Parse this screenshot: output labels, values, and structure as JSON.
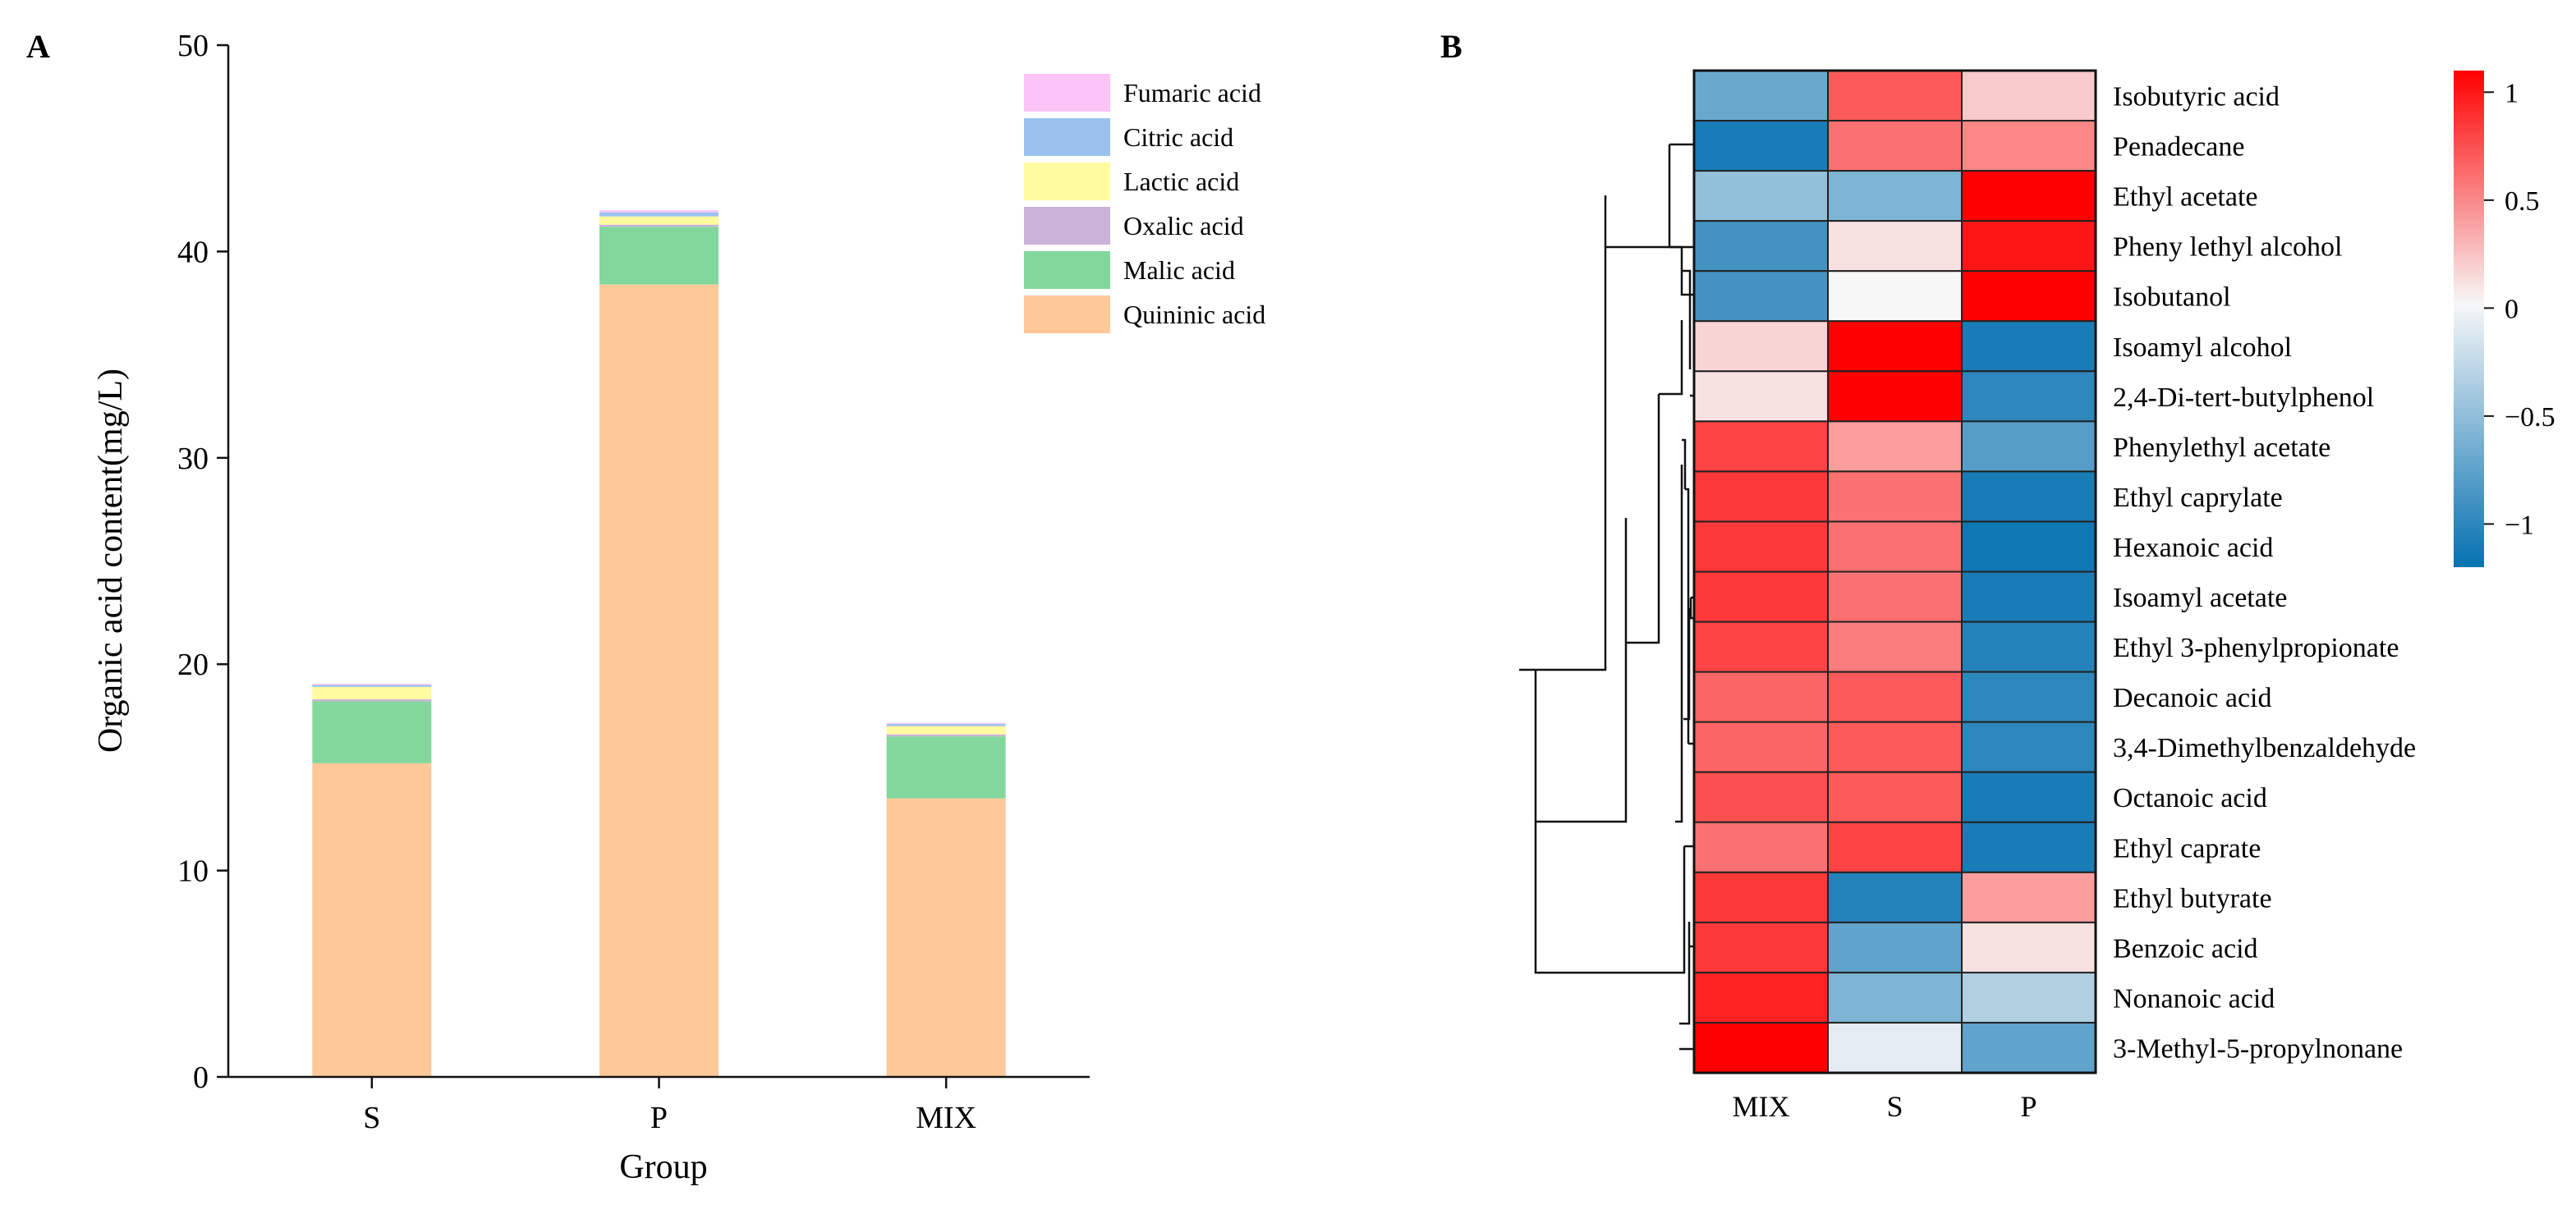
{
  "chart_data": [
    {
      "type": "bar",
      "stacked": true,
      "panel_label": "A",
      "title": "",
      "xlabel": "Group",
      "ylabel": "Organic acid content(mg/L)",
      "ylim": [
        0,
        50
      ],
      "yticks": [
        0,
        10,
        20,
        30,
        40,
        50
      ],
      "categories": [
        "S",
        "P",
        "MIX"
      ],
      "legend_position": "top-right",
      "series": [
        {
          "name": "Quininic acid",
          "color": "#FFC898",
          "values": [
            15.2,
            38.4,
            13.5
          ]
        },
        {
          "name": "Malic acid",
          "color": "#82D89C",
          "values": [
            3.0,
            2.8,
            3.0
          ]
        },
        {
          "name": "Oxalic acid",
          "color": "#CBB2D8",
          "values": [
            0.1,
            0.1,
            0.1
          ]
        },
        {
          "name": "Lactic acid",
          "color": "#FEFBA0",
          "values": [
            0.6,
            0.4,
            0.4
          ]
        },
        {
          "name": "Citric acid",
          "color": "#9BC2EF",
          "values": [
            0.1,
            0.2,
            0.1
          ]
        },
        {
          "name": "Fumaric acid",
          "color": "#FCC3F6",
          "values": [
            0.05,
            0.1,
            0.05
          ]
        }
      ]
    },
    {
      "type": "heatmap",
      "panel_label": "B",
      "columns": [
        "MIX",
        "S",
        "P"
      ],
      "rows": [
        "Isobutyric acid",
        "Penadecane",
        "Ethyl acetate",
        "Pheny lethyl alcohol",
        "Isobutanol",
        "Isoamyl alcohol",
        "2,4-Di-tert-butylphenol",
        "Phenylethyl acetate",
        "Ethyl caprylate",
        "Hexanoic acid",
        "Isoamyl acetate",
        "Ethyl 3-phenylpropionate",
        "Decanoic acid",
        "3,4-Dimethylbenzaldehyde",
        "Octanoic acid",
        "Ethyl caprate",
        "Ethyl butyrate",
        "Benzoic acid",
        "Nonanoic acid",
        "3-Methyl-5-propylnonane"
      ],
      "values": [
        [
          -0.7,
          0.7,
          0.2
        ],
        [
          -1.1,
          0.6,
          0.5
        ],
        [
          -0.5,
          -0.6,
          1.1
        ],
        [
          -0.9,
          0.1,
          1.0
        ],
        [
          -0.9,
          0.0,
          1.1
        ],
        [
          0.15,
          1.1,
          -1.1
        ],
        [
          0.1,
          1.1,
          -1.0
        ],
        [
          0.8,
          0.4,
          -0.8
        ],
        [
          0.85,
          0.6,
          -1.1
        ],
        [
          0.85,
          0.6,
          -1.15
        ],
        [
          0.85,
          0.6,
          -1.1
        ],
        [
          0.8,
          0.55,
          -1.05
        ],
        [
          0.65,
          0.7,
          -1.0
        ],
        [
          0.65,
          0.7,
          -1.0
        ],
        [
          0.75,
          0.7,
          -1.1
        ],
        [
          0.6,
          0.8,
          -1.1
        ],
        [
          0.85,
          -1.05,
          0.4
        ],
        [
          0.85,
          -0.75,
          0.1
        ],
        [
          0.95,
          -0.6,
          -0.35
        ],
        [
          1.1,
          -0.1,
          -0.75
        ]
      ],
      "color_scale": {
        "min": -1.2,
        "max": 1.1,
        "low_color": "#0571B0",
        "mid_color": "#F7F7F7",
        "high_color": "#FF0000",
        "ticks": [
          1,
          0.5,
          0,
          -0.5,
          -1
        ],
        "tick_labels": [
          "1",
          "0.5",
          "0",
          "−0.5",
          "−1"
        ]
      }
    }
  ]
}
